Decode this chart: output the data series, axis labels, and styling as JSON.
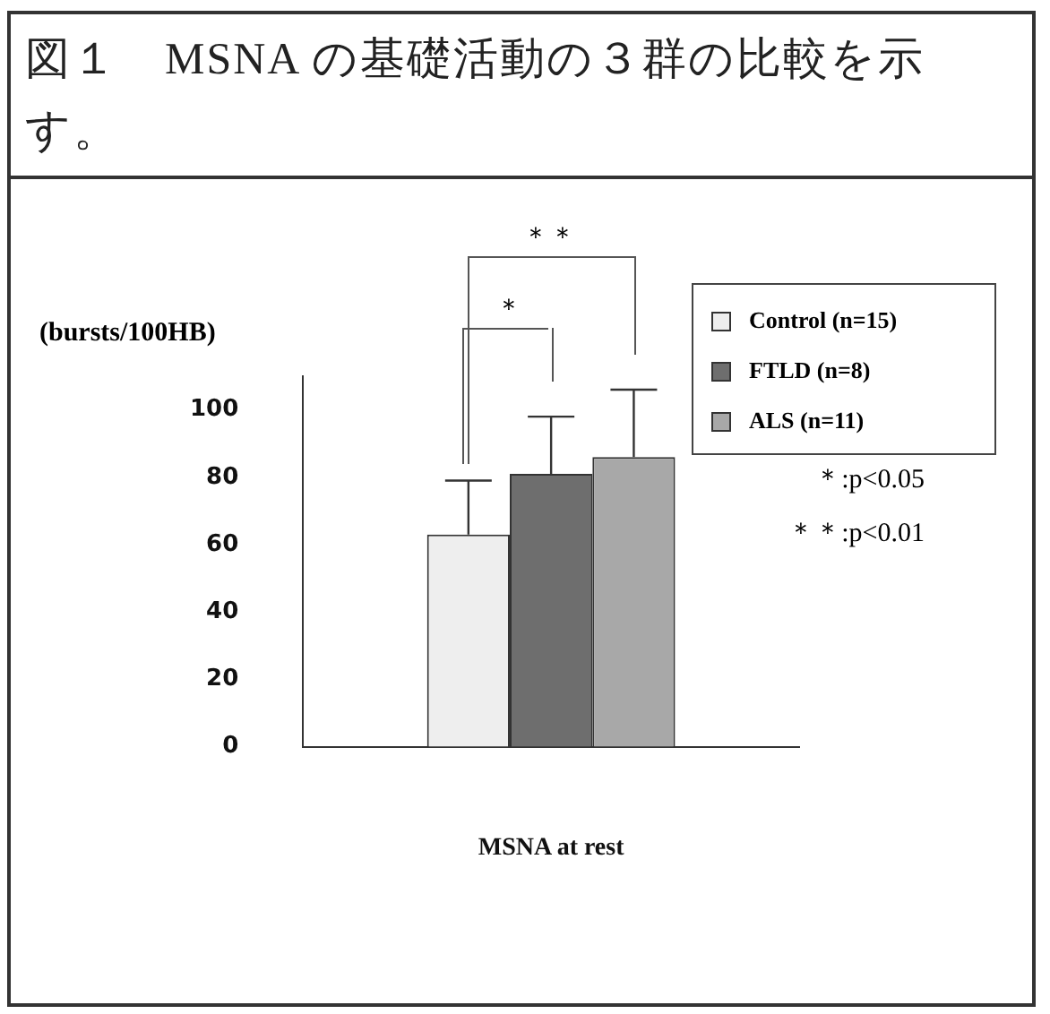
{
  "chart_data": {
    "type": "bar",
    "title": "図１　MSNA の基礎活動の３群の比較を示す。",
    "xlabel": "MSNA at rest",
    "ylabel": "(bursts/100HB)",
    "categories": [
      null
    ],
    "series": [
      {
        "name": "Control (n=15)",
        "color": "#eeeeee",
        "values": [
          63
        ],
        "errors": [
          [
            63,
            79
          ]
        ]
      },
      {
        "name": "FTLD (n=8)",
        "color": "#6e6e6e",
        "values": [
          81
        ],
        "errors": [
          [
            81,
            98
          ]
        ]
      },
      {
        "name": "ALS (n=11)",
        "color": "#a8a8a8",
        "values": [
          86
        ],
        "errors": [
          [
            86,
            106
          ]
        ]
      }
    ],
    "ylim": [
      0,
      110
    ],
    "yticks": [
      0,
      20,
      40,
      60,
      80,
      100
    ],
    "grid": false,
    "legend": "top right",
    "annotations": [
      "＊",
      "＊＊",
      "＊:p<0.05",
      "＊＊:p<0.01"
    ]
  }
}
